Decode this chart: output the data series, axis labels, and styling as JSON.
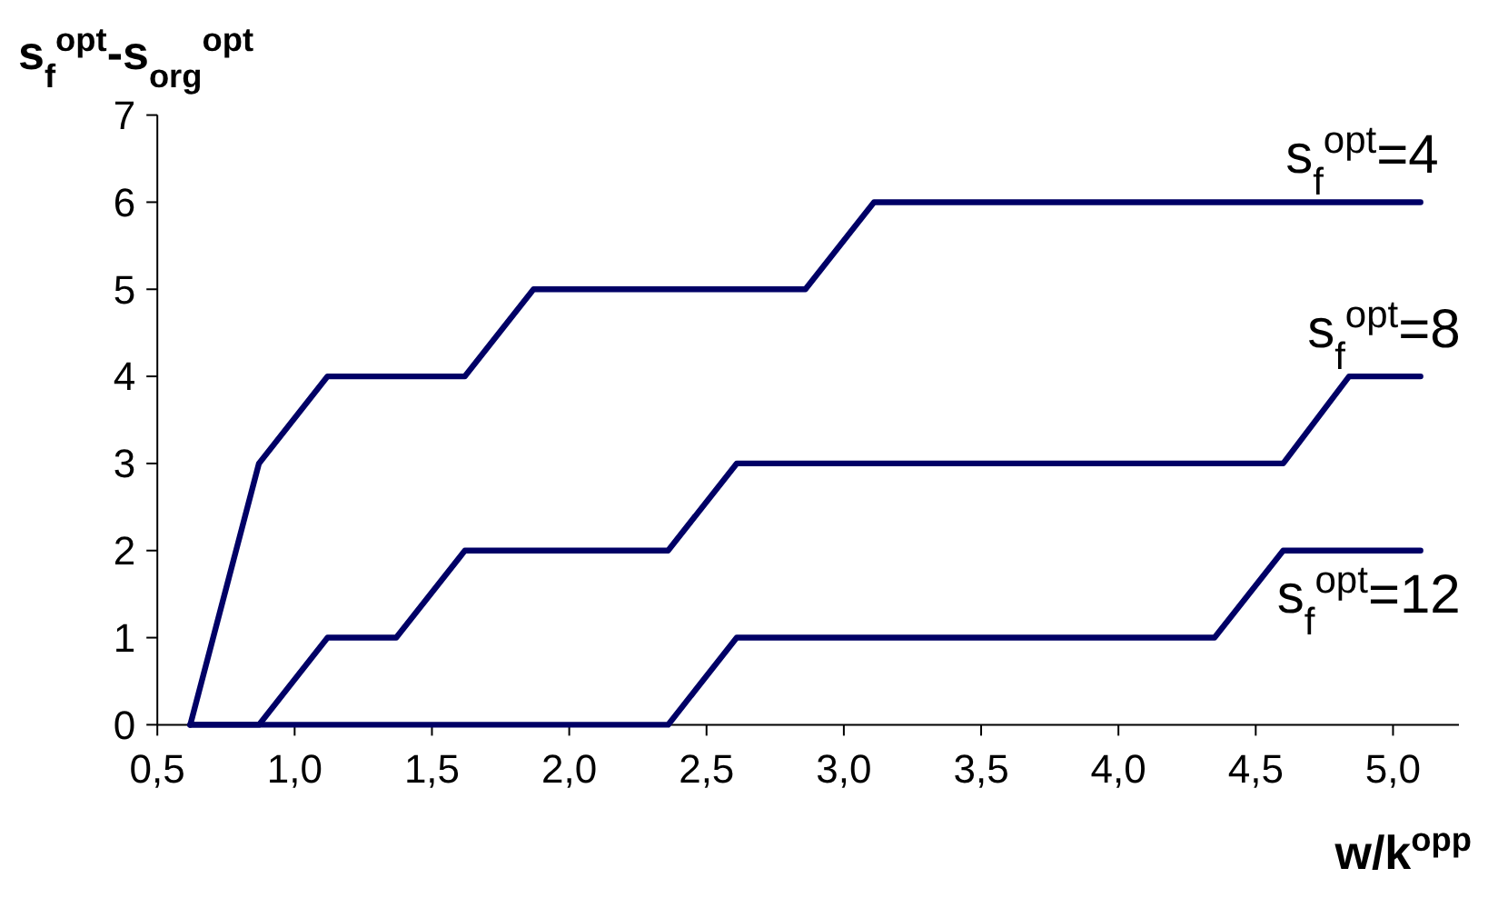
{
  "chart_data": {
    "type": "line",
    "ylabel": "s$_{f}$$^{opt}$-s$_{org}$$^{opt}$",
    "xlabel": "w/k$^{opp}$",
    "xlim": [
      0.5,
      5.24
    ],
    "xticks": [
      {
        "value": 0.5,
        "label": "0,5"
      },
      {
        "value": 1,
        "label": "1,0"
      },
      {
        "value": 1.5,
        "label": "1,5"
      },
      {
        "value": 2,
        "label": "2,0"
      },
      {
        "value": 2.5,
        "label": "2,5"
      },
      {
        "value": 3,
        "label": "3,0"
      },
      {
        "value": 3.5,
        "label": "3,5"
      },
      {
        "value": 4,
        "label": "4,0"
      },
      {
        "value": 4.5,
        "label": "4,5"
      },
      {
        "value": 5,
        "label": "5,0"
      }
    ],
    "ylim": [
      0,
      7
    ],
    "yticks": [
      0,
      1,
      2,
      3,
      4,
      5,
      6,
      7
    ],
    "grid": false,
    "marker": "none",
    "line_style": "solid",
    "series": [
      {
        "name": "s$_{f}$$^{opt}$=4",
        "color": "#000066",
        "x": [
          0.62,
          0.87,
          1.12,
          1.62,
          1.87,
          2.86,
          3.11,
          5.1
        ],
        "values": [
          0,
          3,
          4,
          4,
          5,
          5,
          6,
          6
        ]
      },
      {
        "name": "s$_{f}$$^{opt}$=8",
        "color": "#000066",
        "x": [
          0.62,
          0.87,
          1.12,
          1.37,
          1.62,
          2.36,
          2.61,
          4.6,
          4.84,
          5.1
        ],
        "values": [
          0,
          0,
          1,
          1,
          2,
          2,
          3,
          3,
          4,
          4
        ]
      },
      {
        "name": "s$_{f}$$^{opt}$=12",
        "color": "#000066",
        "x": [
          0.62,
          2.36,
          2.61,
          4.35,
          4.6,
          5.1
        ],
        "values": [
          0,
          0,
          1,
          1,
          2,
          2
        ]
      }
    ]
  }
}
